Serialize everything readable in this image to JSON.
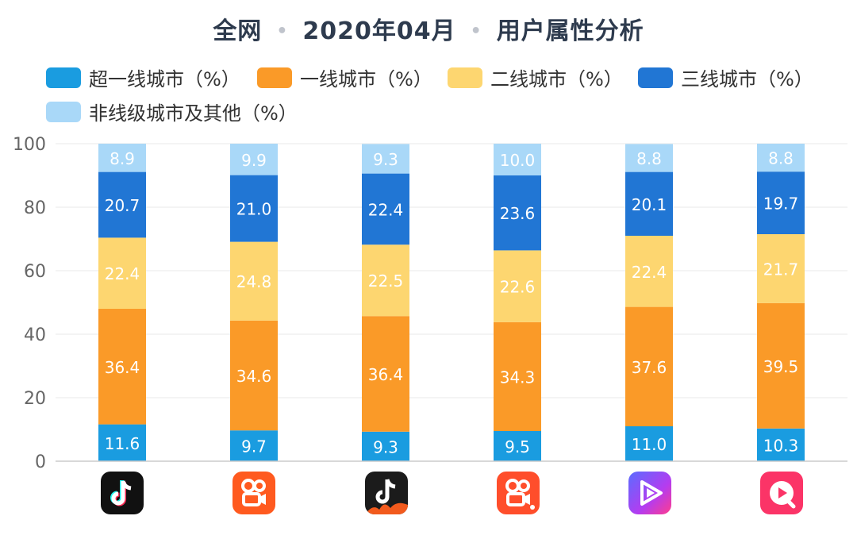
{
  "title": {
    "part1": "全网",
    "separator": "•",
    "part2": "2020年04月",
    "part3": "用户属性分析"
  },
  "colors": {
    "tier_super": "#1a9ce0",
    "tier_1": "#fa9a28",
    "tier_2": "#fdd670",
    "tier_3": "#2176d4",
    "tier_other": "#a9d8f8"
  },
  "chart_data": {
    "type": "bar",
    "stacked": true,
    "title": "全网 • 2020年04月 • 用户属性分析",
    "categories": [
      "app-1",
      "app-2",
      "app-3",
      "app-4",
      "app-5",
      "app-6"
    ],
    "series": [
      {
        "name": "超一线城市（%）",
        "values": [
          11.6,
          9.7,
          9.3,
          9.5,
          11.0,
          10.3
        ]
      },
      {
        "name": "一线城市（%）",
        "values": [
          36.4,
          34.6,
          36.4,
          34.3,
          37.6,
          39.5
        ]
      },
      {
        "name": "二线城市（%）",
        "values": [
          22.4,
          24.8,
          22.5,
          22.6,
          22.4,
          21.7
        ]
      },
      {
        "name": "三线城市（%）",
        "values": [
          20.7,
          21.0,
          22.4,
          23.6,
          20.1,
          19.7
        ]
      },
      {
        "name": "非线级城市及其他（%）",
        "values": [
          8.9,
          9.9,
          9.3,
          10.0,
          8.8,
          8.8
        ]
      }
    ],
    "ylim": [
      0,
      100
    ],
    "yticks": [
      0,
      20,
      40,
      60,
      80,
      100
    ],
    "grid": true,
    "legend": "top-left",
    "data_labels": true
  },
  "icons": [
    {
      "name": "douyin-icon"
    },
    {
      "name": "kuaishou-icon"
    },
    {
      "name": "douyin-huoshan-icon"
    },
    {
      "name": "kuaishou-jisu-icon"
    },
    {
      "name": "video-app-icon"
    },
    {
      "name": "video-app-red-icon"
    }
  ]
}
